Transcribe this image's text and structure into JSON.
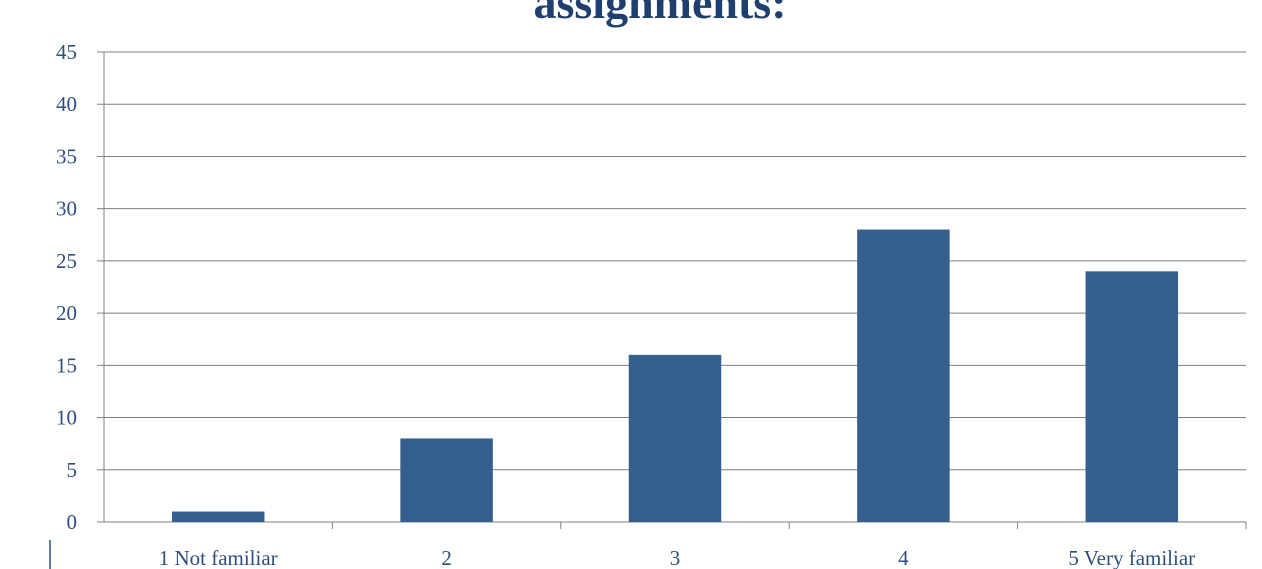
{
  "chart_data": {
    "type": "bar",
    "title": "assignments:",
    "categories": [
      "1 Not familiar",
      "2",
      "3",
      "4",
      "5 Very familiar"
    ],
    "values": [
      1,
      8,
      16,
      28,
      24
    ],
    "ylim": [
      0,
      45
    ],
    "y_ticks": [
      "0",
      "5",
      "10",
      "15",
      "20",
      "25",
      "30",
      "35",
      "40",
      "45"
    ],
    "grid": true,
    "legend": "none",
    "colors": {
      "bar": "#355F8F",
      "text": "#2E4E7E",
      "title": "#1F3F6E",
      "grid": "#7F7F7F",
      "axis": "#7F7F7F"
    }
  }
}
